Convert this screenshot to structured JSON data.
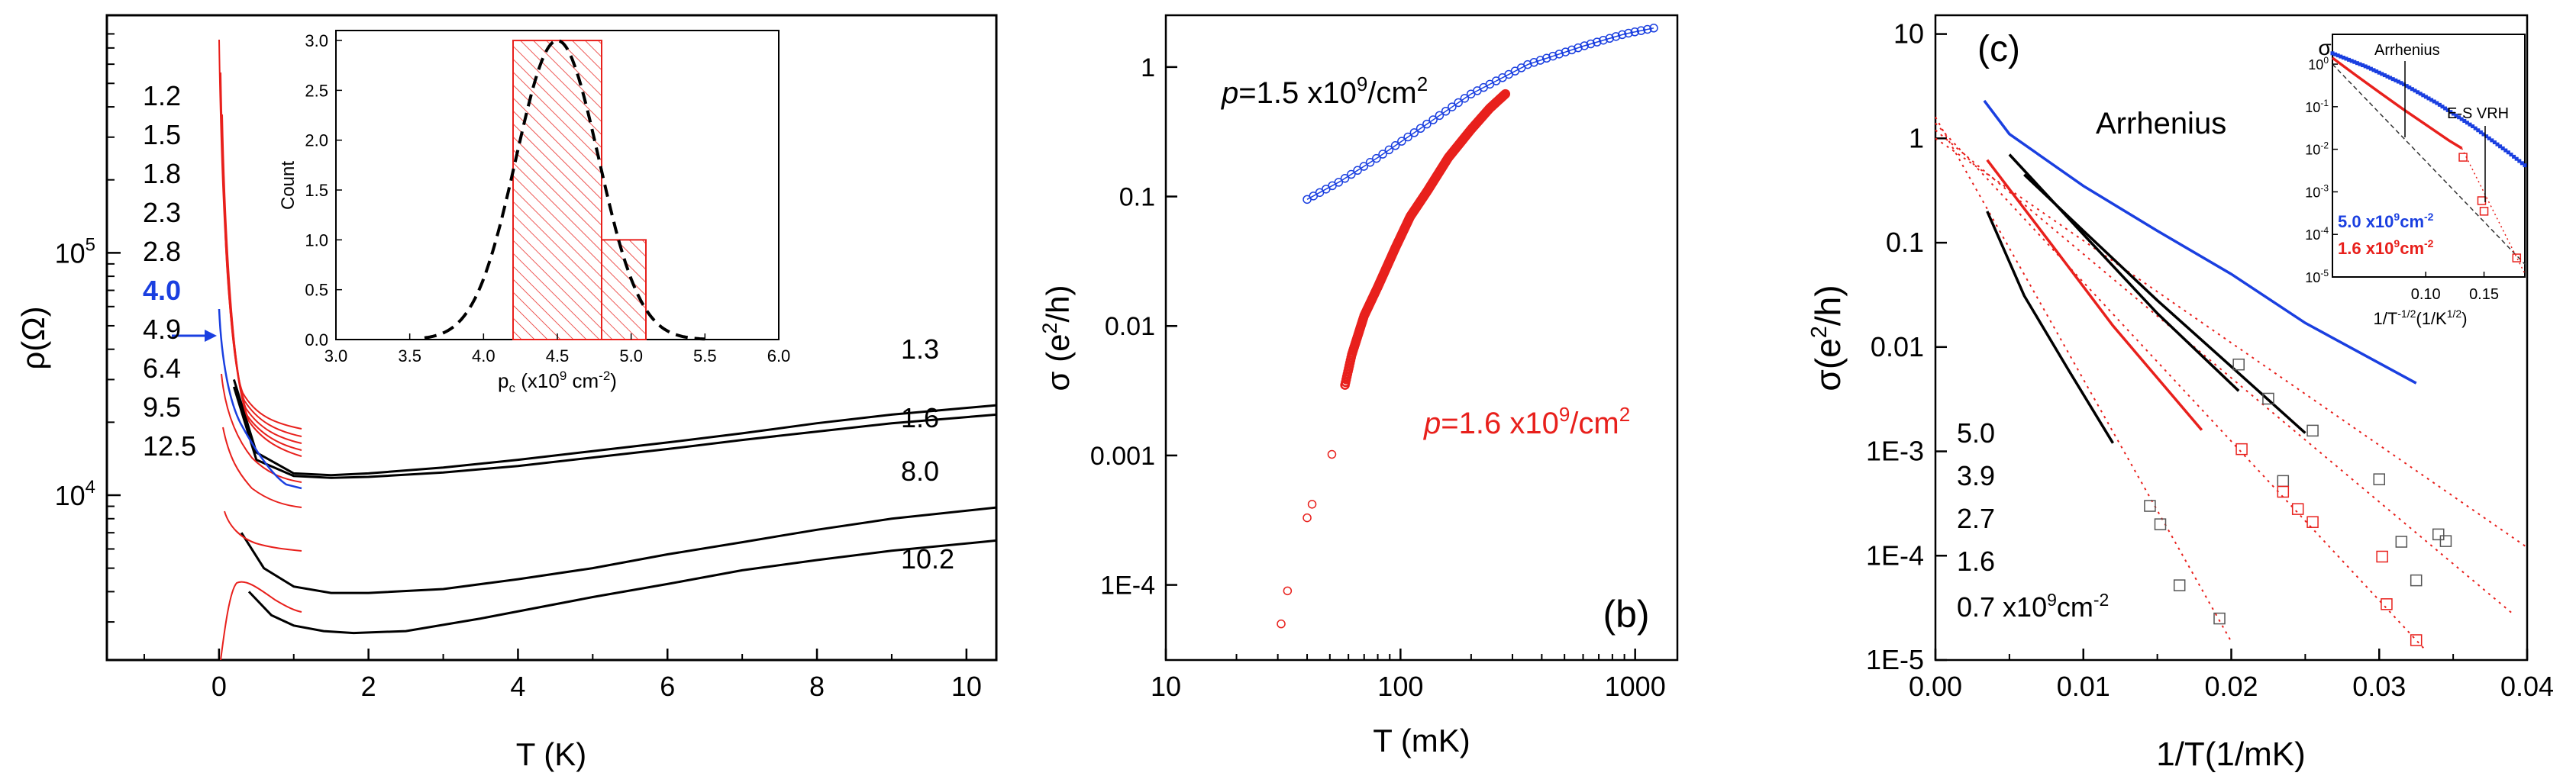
{
  "chart_data": [
    {
      "type": "line",
      "panel": "a",
      "xlabel": "T (K)",
      "ylabel": "ρ(Ω)",
      "xlim": [
        -1.5,
        10.4
      ],
      "ylim_log10": [
        3.32,
        5.98
      ],
      "x_ticks": [
        "0",
        "2",
        "4",
        "6",
        "8",
        "10"
      ],
      "x_tick_values": [
        0,
        2,
        4,
        6,
        8,
        10
      ],
      "y_ticks": [
        "10",
        "10"
      ],
      "y_tick_sup": [
        "4",
        "5"
      ],
      "y_tick_values": [
        10000,
        100000
      ],
      "highlight_color": "#1a3fe0",
      "density_color": "#e8201c",
      "density_labels": [
        "1.2",
        "1.5",
        "1.8",
        "2.3",
        "2.8",
        "4.0",
        "4.9",
        "6.4",
        "9.5",
        "12.5"
      ],
      "highlight_label": "4.0",
      "long_curve_labels": [
        "1.3",
        "1.6",
        "8.0",
        "10.2"
      ],
      "series": [
        {
          "name": "1.3",
          "color": "#000000",
          "x": [
            0.2,
            0.5,
            1.0,
            1.5,
            2,
            3,
            4,
            5,
            6,
            7,
            8,
            9,
            10.4
          ],
          "y": [
            30000,
            15000,
            12300,
            12100,
            12300,
            13000,
            14000,
            15200,
            16500,
            18000,
            19800,
            21500,
            23500
          ]
        },
        {
          "name": "1.6",
          "color": "#000000",
          "x": [
            0.2,
            0.5,
            1.0,
            1.5,
            2,
            3,
            4,
            5,
            6,
            7,
            8,
            9,
            10.4
          ],
          "y": [
            28000,
            14000,
            12000,
            11800,
            11900,
            12400,
            13200,
            14300,
            15500,
            16900,
            18300,
            19800,
            21500
          ]
        },
        {
          "name": "8.0",
          "color": "#000000",
          "x": [
            0.3,
            0.6,
            1.0,
            1.5,
            2,
            3,
            4,
            5,
            6,
            7,
            8,
            9,
            10.4
          ],
          "y": [
            7000,
            5000,
            4200,
            3950,
            3950,
            4100,
            4500,
            5000,
            5700,
            6400,
            7200,
            8000,
            8900
          ]
        },
        {
          "name": "10.2",
          "color": "#000000",
          "x": [
            0.4,
            0.7,
            1.0,
            1.4,
            1.8,
            2.5,
            3.5,
            5,
            6,
            7,
            8,
            9,
            10.4
          ],
          "y": [
            4000,
            3200,
            2900,
            2750,
            2700,
            2750,
            3100,
            3800,
            4300,
            4900,
            5400,
            5900,
            6500
          ]
        }
      ],
      "inset": {
        "type": "histogram",
        "xlabel": "p",
        "xlabel_sub": "c",
        "xlabel_rest": " (x10",
        "xlabel_sup": "9",
        "xlabel_end": " cm",
        "xlabel_sup2": "-2",
        "xlabel_close": ")",
        "ylabel": "Count",
        "x_ticks": [
          "3.0",
          "3.5",
          "4.0",
          "4.5",
          "5.0",
          "5.5",
          "6.0"
        ],
        "x_tick_values": [
          3.0,
          3.5,
          4.0,
          4.5,
          5.0,
          5.5,
          6.0
        ],
        "y_ticks": [
          "0.0",
          "0.5",
          "1.0",
          "1.5",
          "2.0",
          "2.5",
          "3.0"
        ],
        "y_tick_values": [
          0.0,
          0.5,
          1.0,
          1.5,
          2.0,
          2.5,
          3.0
        ],
        "bins": [
          4.2,
          4.8,
          5.1
        ],
        "counts": [
          3,
          1
        ],
        "gaussian": {
          "mean": 4.5,
          "sigma": 0.28,
          "peak": 3.0
        }
      }
    },
    {
      "type": "scatter",
      "panel": "b",
      "panel_label": "(b)",
      "xlabel": "T (mK)",
      "ylabel_prefix": "σ (e",
      "ylabel_sup": "2",
      "ylabel_suffix": "/h)",
      "xlim_log10": [
        1,
        3.18
      ],
      "ylim_log10": [
        -4.58,
        0.4
      ],
      "x_ticks": [
        "10",
        "100",
        "1000"
      ],
      "x_tick_values": [
        10,
        100,
        1000
      ],
      "y_ticks": [
        "1E-4",
        "0.001",
        "0.01",
        "0.1",
        "1"
      ],
      "y_tick_values": [
        0.0001,
        0.001,
        0.01,
        0.1,
        1
      ],
      "series": [
        {
          "name": "p=1.5 x10^9/cm^2",
          "color": "#1a3fe0",
          "label_parts": [
            "p",
            "=1.5 x10",
            "9",
            "/cm",
            "2"
          ],
          "x": [
            40,
            55,
            80,
            120,
            200,
            350,
            600,
            900,
            1200
          ],
          "y": [
            0.095,
            0.13,
            0.2,
            0.33,
            0.62,
            1.05,
            1.45,
            1.8,
            2.0
          ]
        },
        {
          "name": "p=1.6 x10^9/cm^2",
          "color": "#e8201c",
          "label_parts": [
            "p",
            "=1.6 x10",
            "9",
            "/cm",
            "2"
          ],
          "x": [
            58,
            62,
            70,
            80,
            95,
            110,
            130,
            160,
            200,
            240,
            280
          ],
          "y": [
            0.0035,
            0.006,
            0.012,
            0.02,
            0.04,
            0.07,
            0.11,
            0.2,
            0.33,
            0.48,
            0.62
          ]
        },
        {
          "name": "outliers",
          "color": "#e8201c",
          "x": [
            31,
            33,
            40,
            42,
            51
          ],
          "y": [
            5e-05,
            9e-05,
            0.00033,
            0.00042,
            0.00102
          ]
        }
      ]
    },
    {
      "type": "line",
      "panel": "c",
      "panel_label": "(c)",
      "xlabel": "1/T(1/mK)",
      "ylabel_prefix": "σ(e",
      "ylabel_sup": "2",
      "ylabel_suffix": "/h)",
      "xlim": [
        0,
        0.04
      ],
      "ylim_log10": [
        -5,
        1.18
      ],
      "x_ticks": [
        "0.00",
        "0.01",
        "0.02",
        "0.03",
        "0.04"
      ],
      "x_tick_values": [
        0,
        0.01,
        0.02,
        0.03,
        0.04
      ],
      "y_ticks": [
        "1E-5",
        "1E-4",
        "1E-3",
        "0.01",
        "0.1",
        "1",
        "10"
      ],
      "y_tick_values": [
        1e-05,
        0.0001,
        0.001,
        0.01,
        0.1,
        1,
        10
      ],
      "annotation": "Arrhenius",
      "density_labels": [
        "5.0",
        "3.9",
        "2.7",
        "1.6"
      ],
      "density_last_prefix": "0.7 x10",
      "density_last_sup": "9",
      "density_last_unit": "cm",
      "density_last_sup2": "-2",
      "series": [
        {
          "name": "5.0",
          "color": "#1a3fe0",
          "x": [
            0.0033,
            0.005,
            0.01,
            0.015,
            0.02,
            0.025,
            0.0325
          ],
          "y": [
            2.3,
            1.1,
            0.35,
            0.13,
            0.05,
            0.017,
            0.0045
          ]
        },
        {
          "name": "3.9",
          "color": "#000000",
          "x": [
            0.006,
            0.01,
            0.015,
            0.02,
            0.025
          ],
          "y": [
            0.45,
            0.13,
            0.028,
            0.0065,
            0.0015
          ]
        },
        {
          "name": "2.7",
          "color": "#000000",
          "x": [
            0.005,
            0.01,
            0.015,
            0.0205
          ],
          "y": [
            0.7,
            0.12,
            0.021,
            0.0038
          ]
        },
        {
          "name": "1.6",
          "color": "#e8201c",
          "x": [
            0.0035,
            0.008,
            0.012,
            0.018
          ],
          "y": [
            0.62,
            0.09,
            0.016,
            0.0016
          ]
        },
        {
          "name": "0.7",
          "color": "#000000",
          "x": [
            0.0035,
            0.006,
            0.009,
            0.012
          ],
          "y": [
            0.2,
            0.031,
            0.006,
            0.0012
          ]
        }
      ],
      "fits": [
        {
          "color": "#e8201c",
          "x": [
            0,
            0.02
          ],
          "y": [
            1.6,
            1.5e-05
          ]
        },
        {
          "color": "#e8201c",
          "x": [
            0,
            0.033
          ],
          "y": [
            1.4,
            1.3e-05
          ]
        },
        {
          "color": "#e8201c",
          "x": [
            0,
            0.039
          ],
          "y": [
            1.2,
            2.8e-05
          ]
        },
        {
          "color": "#e8201c",
          "x": [
            0,
            0.04
          ],
          "y": [
            1.0,
            0.00012
          ]
        }
      ],
      "markers_black": {
        "x": [
          0.0205,
          0.0225,
          0.0255,
          0.03,
          0.0235,
          0.0315,
          0.034,
          0.0345,
          0.0325,
          0.0145,
          0.0152,
          0.0165,
          0.0192
        ],
        "y": [
          0.0068,
          0.0032,
          0.00158,
          0.00054,
          0.00052,
          0.000136,
          0.00016,
          0.000138,
          5.8e-05,
          0.0003,
          0.0002,
          5.2e-05,
          2.5e-05
        ]
      },
      "markers_red": {
        "x": [
          0.0207,
          0.0235,
          0.0245,
          0.0302,
          0.0325,
          0.0255,
          0.0305
        ],
        "y": [
          0.00105,
          0.00041,
          0.00028,
          9.8e-05,
          1.55e-05,
          0.00021,
          3.43e-05
        ]
      },
      "inset": {
        "ylabel": "σ",
        "xlabel_prefix": "1/T",
        "xlabel_sup": "-1/2",
        "xlabel_mid": "(1/K",
        "xlabel_sup2": "1/2",
        "xlabel_close": ")",
        "x_ticks": [
          "0.10",
          "0.15"
        ],
        "x_tick_values": [
          0.1,
          0.15
        ],
        "xlim": [
          0.02,
          0.185
        ],
        "ylim_log10": [
          -5,
          0.7
        ],
        "y_ticks": [
          "10",
          "10",
          "10",
          "10",
          "10",
          "10"
        ],
        "y_tick_sup": [
          "-5",
          "-4",
          "-3",
          "-2",
          "-1",
          "0"
        ],
        "y_tick_values": [
          1e-05,
          0.0001,
          0.001,
          0.01,
          0.1,
          1
        ],
        "arrhenius_label": "Arrhenius",
        "vrh_label": "E-S VRH",
        "legend_blue_prefix": "5.0 x10",
        "legend_blue_sup": "9",
        "legend_blue_unit": "cm",
        "legend_blue_sup2": "-2",
        "legend_red_prefix": "1.6 x10",
        "legend_red_sup": "9",
        "legend_red_unit": "cm",
        "legend_red_sup2": "-2",
        "blue": {
          "x": [
            0.02,
            0.05,
            0.08,
            0.11,
            0.14,
            0.17,
            0.185
          ],
          "y": [
            1.8,
            0.85,
            0.35,
            0.12,
            0.035,
            0.0088,
            0.0042
          ]
        },
        "red": {
          "x": [
            0.02,
            0.04,
            0.06,
            0.08,
            0.1,
            0.12,
            0.131
          ],
          "y": [
            1.4,
            0.55,
            0.22,
            0.09,
            0.038,
            0.016,
            0.0105
          ]
        },
        "dashed": {
          "x": [
            0.02,
            0.185
          ],
          "y": [
            1.0,
            2e-05
          ]
        },
        "red_dotted": {
          "x": [
            0.131,
            0.185
          ],
          "y": [
            0.0105,
            1.2e-05
          ]
        },
        "red_markers": {
          "x": [
            0.132,
            0.148,
            0.15,
            0.178
          ],
          "y": [
            0.0065,
            0.00062,
            0.00035,
            2.8e-05
          ]
        }
      }
    }
  ]
}
